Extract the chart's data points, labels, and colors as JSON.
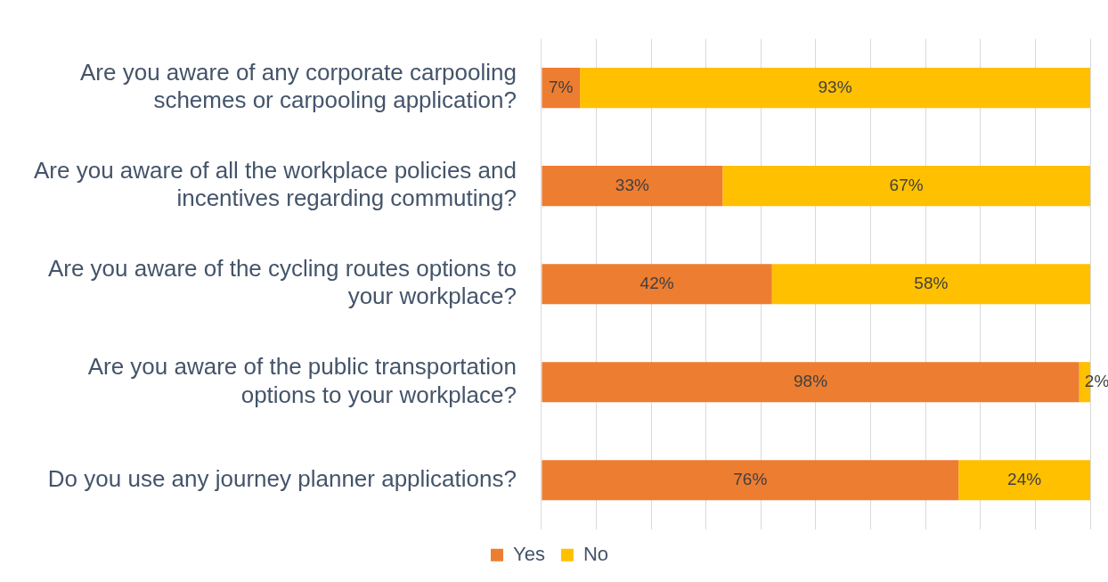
{
  "chart_data": {
    "type": "bar",
    "orientation": "horizontal",
    "stacked": true,
    "categories": [
      "Are you aware of any corporate carpooling schemes or carpooling application?",
      "Are you aware of all the workplace policies and incentives regarding commuting?",
      "Are you aware of the cycling routes options to your workplace?",
      "Are you aware of the public transportation options to your workplace?",
      "Do you use any journey planner applications?"
    ],
    "series": [
      {
        "name": "Yes",
        "color": "#ed7d31",
        "values": [
          7,
          33,
          42,
          98,
          76
        ],
        "value_labels": [
          "7%",
          "33%",
          "42%",
          "98%",
          "76%"
        ]
      },
      {
        "name": "No",
        "color": "#ffc000",
        "values": [
          93,
          67,
          58,
          2,
          24
        ],
        "value_labels": [
          "93%",
          "67%",
          "58%",
          "2%",
          "24%"
        ]
      }
    ],
    "xlim": [
      0,
      100
    ],
    "xticks": [
      {
        "value": 0,
        "label": null
      },
      {
        "value": 10,
        "label": null
      },
      {
        "value": 20,
        "label": null
      },
      {
        "value": 30,
        "label": null
      },
      {
        "value": 40,
        "label": null
      },
      {
        "value": 50,
        "label": null
      },
      {
        "value": 60,
        "label": null
      },
      {
        "value": 70,
        "label": null
      },
      {
        "value": 80,
        "label": null
      },
      {
        "value": 90,
        "label": null
      },
      {
        "value": 100,
        "label": null
      }
    ],
    "tick_labels": "y",
    "grid": "x",
    "legend": "bottom"
  }
}
